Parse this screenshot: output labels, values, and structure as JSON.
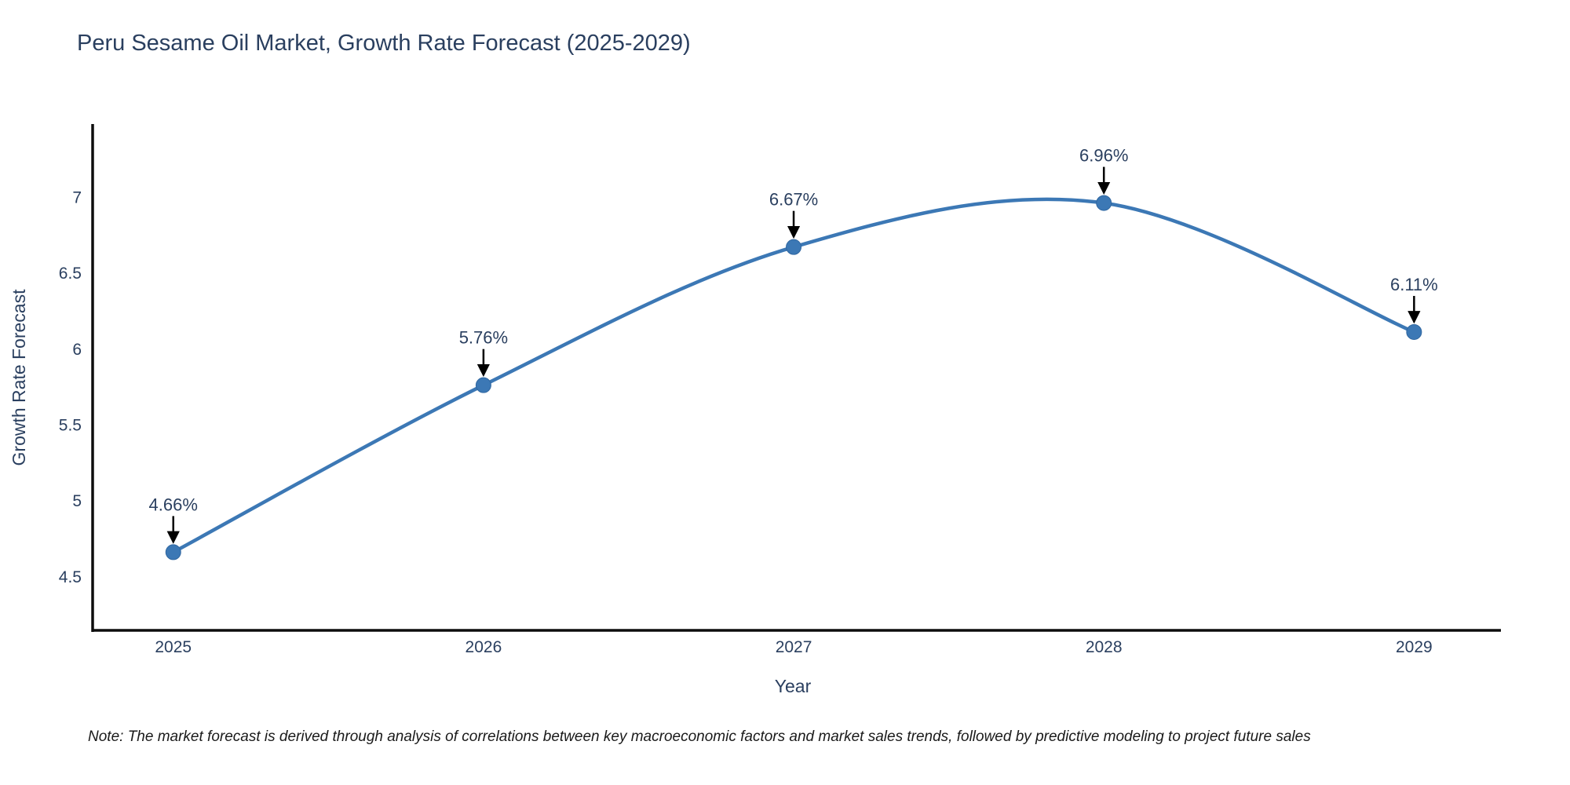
{
  "title": "Peru Sesame Oil Market, Growth Rate Forecast (2025-2029)",
  "note": "Note: The market forecast is derived through analysis of correlations between key macroeconomic factors and market sales trends, followed by predictive modeling to project future sales",
  "colors": {
    "line": "#3c78b5",
    "marker": "#3c78b5",
    "marker_edge": "#2f66a0",
    "text": "#2a3f5f",
    "axis_line": "#0d0d0d",
    "arrow": "#000000",
    "background": "#ffffff"
  },
  "chart_data": {
    "type": "line",
    "x": [
      2025,
      2026,
      2027,
      2028,
      2029
    ],
    "y": [
      4.66,
      5.76,
      6.67,
      6.96,
      6.11
    ],
    "point_labels": [
      "4.66%",
      "5.76%",
      "6.67%",
      "6.96%",
      "6.11%"
    ],
    "series_name": "Growth Rate Forecast",
    "title": "Peru Sesame Oil Market, Growth Rate Forecast (2025-2029)",
    "xlabel": "Year",
    "ylabel": "Growth Rate Forecast",
    "xticks": [
      "2025",
      "2026",
      "2027",
      "2028",
      "2029"
    ],
    "yticks": [
      4.5,
      5,
      5.5,
      6,
      6.5,
      7
    ],
    "xlim": [
      2024.74,
      2029.28
    ],
    "ylim": [
      4.14,
      7.48
    ],
    "line_shape": "spline",
    "grid": false,
    "legend": false,
    "annotations": "arrow-down-to-point"
  }
}
